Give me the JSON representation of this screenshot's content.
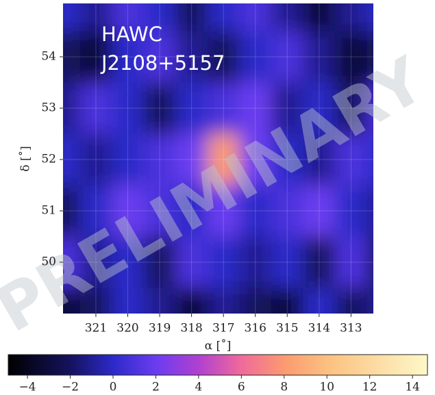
{
  "chart_data": {
    "type": "heatmap",
    "annotations": [
      "HAWC",
      "J2108+5157"
    ],
    "watermark": "PRELIMINARY",
    "xlabel": "α [˚]",
    "ylabel": "δ [˚]",
    "x": [
      322,
      321,
      320,
      319,
      318,
      317,
      316,
      315,
      314,
      313,
      312
    ],
    "y": [
      55,
      54,
      53,
      52,
      51,
      50,
      49
    ],
    "z": [
      [
        0,
        -1,
        1,
        0,
        -2,
        0,
        1,
        -1,
        -3,
        -1,
        0
      ],
      [
        -2,
        -3,
        0,
        1,
        -1,
        -2,
        0,
        1,
        -1,
        -3,
        -2
      ],
      [
        -1,
        1,
        0,
        -2,
        0,
        1,
        2,
        -1,
        0,
        -2,
        1
      ],
      [
        0,
        -1,
        0,
        1,
        2,
        8,
        2,
        0,
        -1,
        1,
        0
      ],
      [
        -2,
        0,
        2,
        1,
        0,
        2,
        0,
        1,
        2,
        0,
        -1
      ],
      [
        1,
        -1,
        0,
        -2,
        1,
        0,
        -1,
        0,
        -2,
        1,
        -2
      ],
      [
        -3,
        -2,
        0,
        -1,
        -3,
        -1,
        -2,
        -3,
        0,
        -2,
        -1
      ]
    ],
    "xlim": [
      322.03,
      312.3
    ],
    "ylim": [
      49,
      55.04
    ],
    "xticks": [
      321,
      320,
      319,
      318,
      317,
      316,
      315,
      314,
      313
    ],
    "yticks": [
      50,
      51,
      52,
      53,
      54
    ],
    "grid": true,
    "zlim": [
      -4.9,
      14.7
    ],
    "zticks": [
      {
        "value": -4,
        "label": "−4"
      },
      {
        "value": -2,
        "label": "−2"
      },
      0,
      2,
      4,
      6,
      8,
      10,
      12,
      14
    ],
    "colormap": {
      "values": [
        -4.9,
        -2,
        0,
        2,
        4,
        6,
        8,
        10,
        14.7
      ],
      "colors": [
        "#000000",
        "#15125e",
        "#2c2ac8",
        "#6a3cf0",
        "#b040d0",
        "#f06a9a",
        "#fb9a70",
        "#fcc080",
        "#fdf8c8"
      ]
    }
  }
}
